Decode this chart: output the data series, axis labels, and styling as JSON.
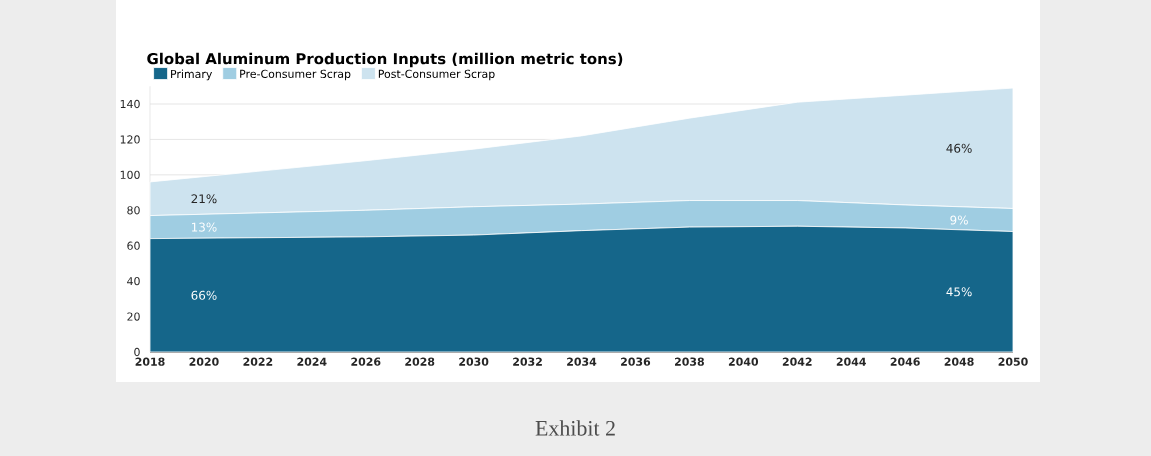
{
  "chart_data": {
    "type": "area",
    "stacked": true,
    "title": "Global Aluminum Production Inputs (million metric tons)",
    "x": [
      2018,
      2022,
      2026,
      2030,
      2034,
      2038,
      2042,
      2046,
      2050
    ],
    "series": [
      {
        "name": "Primary",
        "color": "#15668a",
        "values": [
          64,
          64.5,
          65,
          66,
          68.5,
          70.5,
          71,
          70,
          68
        ]
      },
      {
        "name": "Pre-Consumer Scrap",
        "color": "#9fcde2",
        "values": [
          13,
          14,
          15,
          16,
          15,
          15,
          14.5,
          13,
          13
        ]
      },
      {
        "name": "Post-Consumer Scrap",
        "color": "#cde3ef",
        "values": [
          19,
          23.5,
          28,
          32.5,
          38.5,
          46.5,
          55.5,
          62,
          68
        ]
      }
    ],
    "xlim": [
      2018,
      2050
    ],
    "xticks": [
      2018,
      2020,
      2022,
      2024,
      2026,
      2028,
      2030,
      2032,
      2034,
      2036,
      2038,
      2040,
      2042,
      2044,
      2046,
      2048,
      2050
    ],
    "ylim": [
      0,
      150
    ],
    "yticks": [
      0,
      20,
      40,
      60,
      80,
      100,
      120,
      140
    ],
    "grid": "y",
    "legend": "top left",
    "annotations": [
      "21%",
      "13%",
      "66%",
      "46%",
      "9%",
      "45%",
      "Exhibit 2"
    ]
  }
}
